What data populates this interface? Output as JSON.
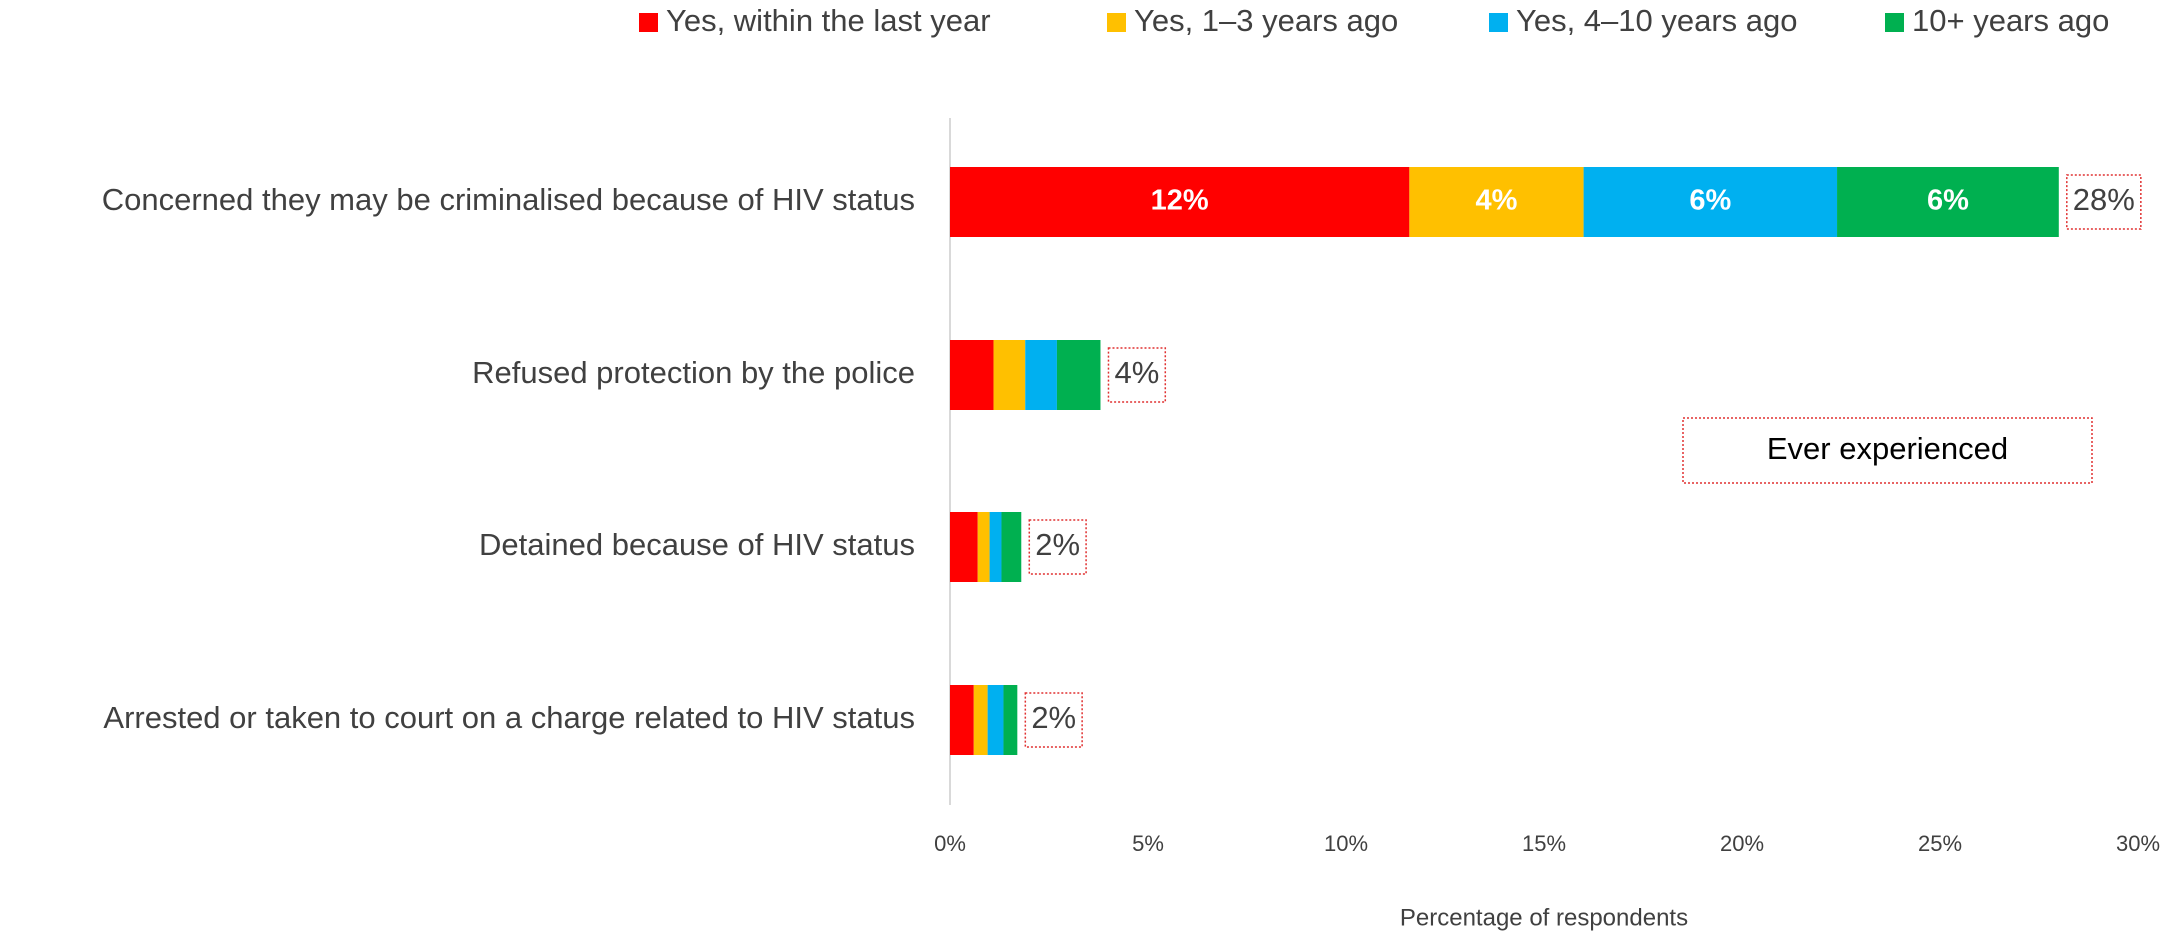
{
  "chart_data": {
    "type": "stacked-bar-horizontal",
    "categories": [
      "Concerned they may be criminalised because of HIV status",
      "Refused protection by the police",
      "Detained because of HIV status",
      "Arrested or taken to court on a charge related to HIV status"
    ],
    "series": [
      {
        "name": "Yes, within the last year",
        "color": "#ff0000",
        "values": [
          11.6,
          1.1,
          0.7,
          0.6
        ],
        "value_labels": [
          "12%",
          null,
          null,
          null
        ]
      },
      {
        "name": "Yes, 1–3 years ago",
        "color": "#ffc000",
        "values": [
          4.4,
          0.8,
          0.3,
          0.35
        ],
        "value_labels": [
          "4%",
          null,
          null,
          null
        ]
      },
      {
        "name": "Yes, 4–10 years ago",
        "color": "#00b0f0",
        "values": [
          6.4,
          0.8,
          0.3,
          0.4
        ],
        "value_labels": [
          "6%",
          null,
          null,
          null
        ]
      },
      {
        "name": "10+ years ago",
        "color": "#00b050",
        "values": [
          5.6,
          1.1,
          0.5,
          0.35
        ],
        "value_labels": [
          "6%",
          null,
          null,
          null
        ]
      }
    ],
    "totals": {
      "values": [
        28,
        3.8,
        1.8,
        1.7
      ],
      "value_labels": [
        "28%",
        "4%",
        "2%",
        "2%"
      ]
    },
    "annotation": "Ever experienced",
    "xlabel": "Percentage of respondents",
    "xlim": [
      0,
      30
    ],
    "xticks": [
      {
        "value": 0,
        "label": "0%"
      },
      {
        "value": 5,
        "label": "5%"
      },
      {
        "value": 10,
        "label": "10%"
      },
      {
        "value": 15,
        "label": "15%"
      },
      {
        "value": 20,
        "label": "20%"
      },
      {
        "value": 25,
        "label": "25%"
      },
      {
        "value": 30,
        "label": "30%"
      }
    ],
    "legend": "top"
  }
}
